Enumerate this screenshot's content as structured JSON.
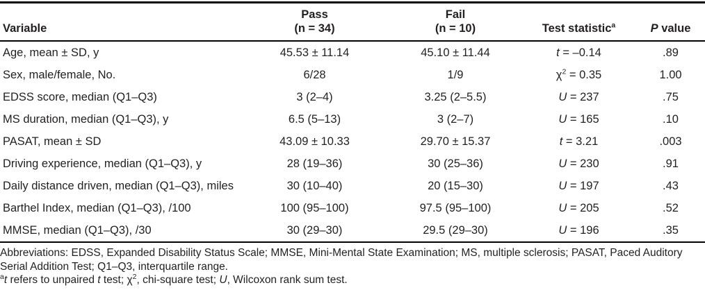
{
  "table": {
    "headers": {
      "variable": "Variable",
      "pass_line1": "Pass",
      "pass_line2": "(n = 34)",
      "fail_line1": "Fail",
      "fail_line2": "(n = 10)",
      "test_statistic": "Test statistic",
      "test_statistic_sup": "a",
      "p_italic": "P",
      "p_rest": " value"
    },
    "rows": [
      {
        "variable": "Age, mean ± SD, y",
        "pass": "45.53 ± 11.14",
        "fail": "45.10 ± 11.44",
        "stat_symbol": "t",
        "stat_sup": "",
        "stat_rest": " = –0.14",
        "stat_italic": true,
        "p": ".89"
      },
      {
        "variable": "Sex, male/female, No.",
        "pass": "6/28",
        "fail": "1/9",
        "stat_symbol": "χ",
        "stat_sup": "2",
        "stat_rest": " = 0.35",
        "stat_italic": false,
        "p": "1.00"
      },
      {
        "variable": "EDSS score, median (Q1–Q3)",
        "pass": "3 (2–4)",
        "fail": "3.25 (2–5.5)",
        "stat_symbol": "U",
        "stat_sup": "",
        "stat_rest": " = 237",
        "stat_italic": true,
        "p": ".75"
      },
      {
        "variable": "MS duration, median (Q1–Q3), y",
        "pass": "6.5 (5–13)",
        "fail": "3 (2–7)",
        "stat_symbol": "U",
        "stat_sup": "",
        "stat_rest": " = 165",
        "stat_italic": true,
        "p": ".10"
      },
      {
        "variable": "PASAT, mean ± SD",
        "pass": "43.09 ± 10.33",
        "fail": "29.70 ± 15.37",
        "stat_symbol": "t",
        "stat_sup": "",
        "stat_rest": " = 3.21",
        "stat_italic": true,
        "p": ".003"
      },
      {
        "variable": "Driving experience, median (Q1–Q3), y",
        "pass": "28 (19–36)",
        "fail": "30 (25–36)",
        "stat_symbol": "U",
        "stat_sup": "",
        "stat_rest": " = 230",
        "stat_italic": true,
        "p": ".91"
      },
      {
        "variable": "Daily distance driven, median (Q1–Q3), miles",
        "pass": "30 (10–40)",
        "fail": "20 (15–30)",
        "stat_symbol": "U",
        "stat_sup": "",
        "stat_rest": " = 197",
        "stat_italic": true,
        "p": ".43"
      },
      {
        "variable": "Barthel Index, median (Q1–Q3), /100",
        "pass": "100 (95–100)",
        "fail": "97.5 (95–100)",
        "stat_symbol": "U",
        "stat_sup": "",
        "stat_rest": " = 205",
        "stat_italic": true,
        "p": ".52"
      },
      {
        "variable": "MMSE, median (Q1–Q3), /30",
        "pass": "30 (29–30)",
        "fail": "29.5 (29–30)",
        "stat_symbol": "U",
        "stat_sup": "",
        "stat_rest": " = 196",
        "stat_italic": true,
        "p": ".35"
      }
    ]
  },
  "footnotes": {
    "abbreviations": "Abbreviations: EDSS, Expanded Disability Status Scale; MMSE, Mini-Mental State Examination; MS, multiple sclerosis; PASAT, Paced Auditory Serial Addition Test; Q1–Q3, interquartile range.",
    "note_a": {
      "sup": "a",
      "t1": "t",
      "mid1": " refers to unpaired ",
      "t2": "t",
      "mid2": " test; ",
      "chi": "χ",
      "chi_sup": "2",
      "mid3": ", chi-square test; ",
      "u": "U",
      "end": ", Wilcoxon rank sum test."
    }
  }
}
